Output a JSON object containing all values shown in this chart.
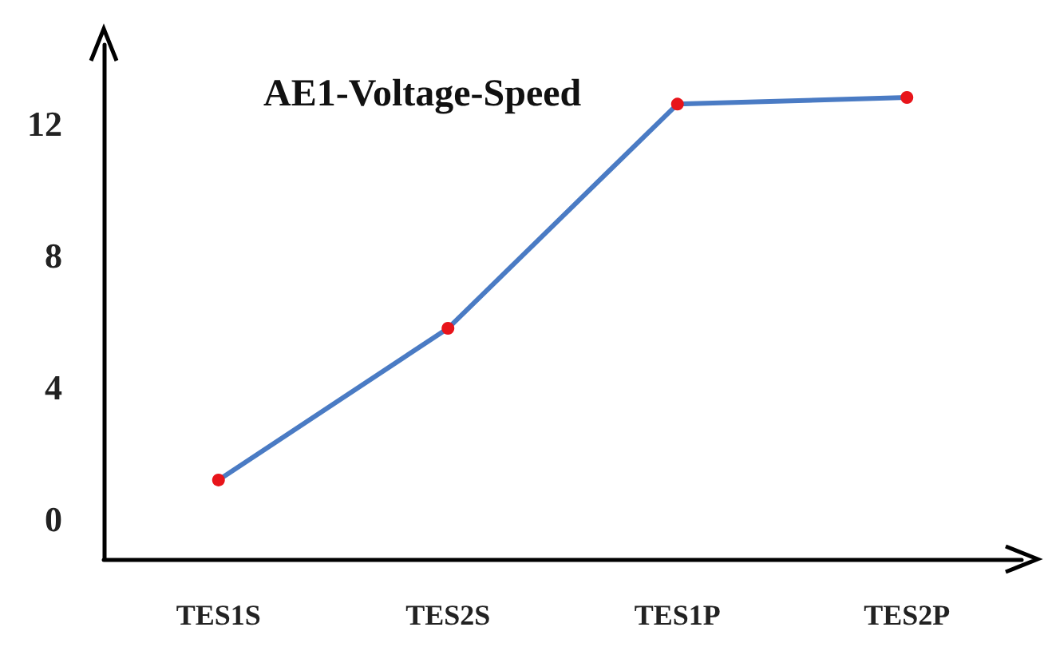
{
  "chart_data": {
    "type": "line",
    "title": "AE1-Voltage-Speed",
    "categories": [
      "TES1S",
      "TES2S",
      "TES1P",
      "TES2P"
    ],
    "series": [
      {
        "color": "#4a7bc4",
        "colors": [
          "#e8141a",
          "#e8141a",
          "#e8141a",
          "#e8141a"
        ],
        "values": [
          1.2,
          5.8,
          12.6,
          12.8
        ]
      }
    ],
    "ylim": [
      -1.2,
      14.4
    ],
    "yticks": [
      0,
      4,
      8,
      12
    ],
    "grid": false,
    "marker": "circle",
    "line_style": "solid"
  }
}
